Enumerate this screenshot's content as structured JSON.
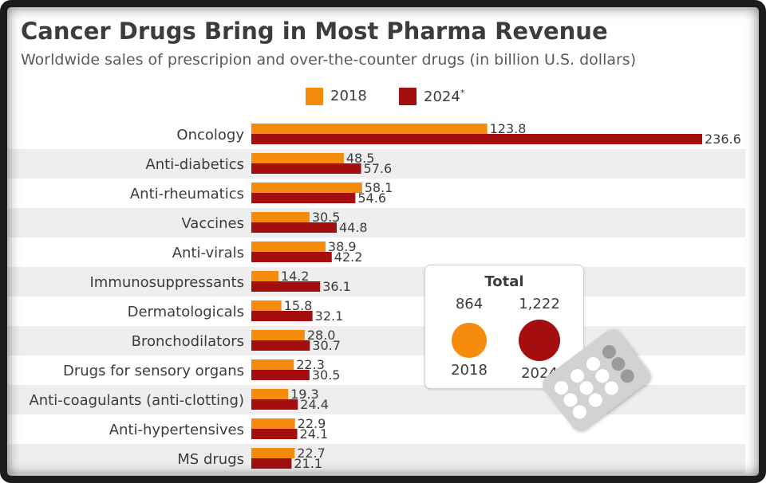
{
  "header": {
    "title": "Cancer Drugs Bring in Most Pharma Revenue",
    "subtitle": "Worldwide sales of prescripion and over-the-counter drugs (in billion U.S. dollars)"
  },
  "legend": {
    "items": [
      {
        "label": "2018",
        "color": "#f58a0b"
      },
      {
        "label": "2024",
        "suffix": "*",
        "color": "#a40e0e"
      }
    ]
  },
  "total": {
    "title": "Total",
    "items": [
      {
        "value": "864",
        "year": "2018",
        "color": "#f58a0b"
      },
      {
        "value": "1,222",
        "year": "2024",
        "color": "#a40e0e"
      }
    ]
  },
  "chart_data": {
    "type": "bar",
    "orientation": "horizontal",
    "categories": [
      "Oncology",
      "Anti-diabetics",
      "Anti-rheumatics",
      "Vaccines",
      "Anti-virals",
      "Immunosuppressants",
      "Dermatologicals",
      "Bronchodilators",
      "Drugs for sensory organs",
      "Anti-coagulants (anti-clotting)",
      "Anti-hypertensives",
      "MS drugs"
    ],
    "series": [
      {
        "name": "2018",
        "color": "#f58a0b",
        "values": [
          123.8,
          48.5,
          58.1,
          30.5,
          38.9,
          14.2,
          15.8,
          28.0,
          22.3,
          19.3,
          22.9,
          22.7
        ]
      },
      {
        "name": "2024",
        "color": "#a40e0e",
        "values": [
          236.6,
          57.6,
          54.6,
          44.8,
          42.2,
          36.1,
          32.1,
          30.7,
          30.5,
          24.4,
          24.1,
          21.1
        ]
      }
    ],
    "value_format": "one-decimal",
    "xlim": [
      0,
      240
    ],
    "grid": false,
    "legend_position": "top-center",
    "alternate_row_shading": "#eeeeee"
  }
}
